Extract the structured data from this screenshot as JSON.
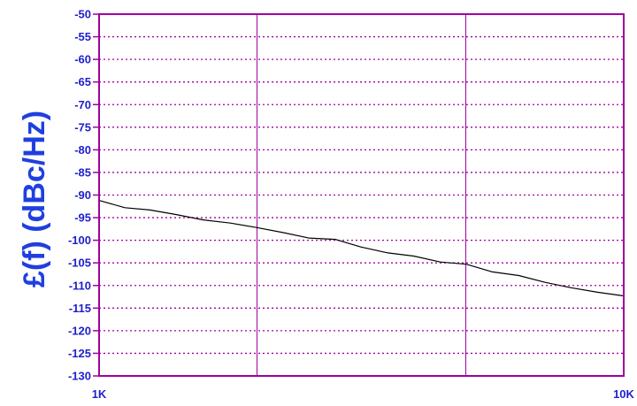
{
  "chart_data": {
    "type": "line",
    "title": "",
    "xlabel": "",
    "ylabel": "£(f) (dBc/Hz)",
    "x_scale": "log",
    "xlim": [
      1000,
      10000
    ],
    "ylim": [
      -130,
      -50
    ],
    "y_ticks": [
      "-50",
      "-55",
      "-60",
      "-65",
      "-70",
      "-75",
      "-80",
      "-85",
      "-90",
      "-95",
      "-100",
      "-105",
      "-110",
      "-115",
      "-120",
      "-125",
      "-130"
    ],
    "x_tick_labels": [
      {
        "value": 1000,
        "label": "1K"
      },
      {
        "value": 10000,
        "label": "10K"
      }
    ],
    "x_minor_gridlines": [
      2000,
      5000
    ],
    "grid": true,
    "colors": {
      "frame": "#a000a0",
      "grid": "#a000a0",
      "trace": "#000000",
      "tick_text": "#1f1fcc",
      "ylabel_text": "#1f3fe0"
    },
    "series": [
      {
        "x": [
          1000,
          1120,
          1250,
          1400,
          1580,
          1780,
          2000,
          2240,
          2510,
          2820,
          3160,
          3550,
          3980,
          4470,
          5010,
          5620,
          6310,
          7080,
          7940,
          8910,
          10000
        ],
        "y": [
          -91.2,
          -92.8,
          -93.3,
          -94.3,
          -95.5,
          -96.2,
          -97.2,
          -98.3,
          -99.5,
          -99.8,
          -101.5,
          -102.8,
          -103.5,
          -104.8,
          -105.3,
          -107.0,
          -107.8,
          -109.3,
          -110.5,
          -111.5,
          -112.3
        ]
      }
    ]
  }
}
